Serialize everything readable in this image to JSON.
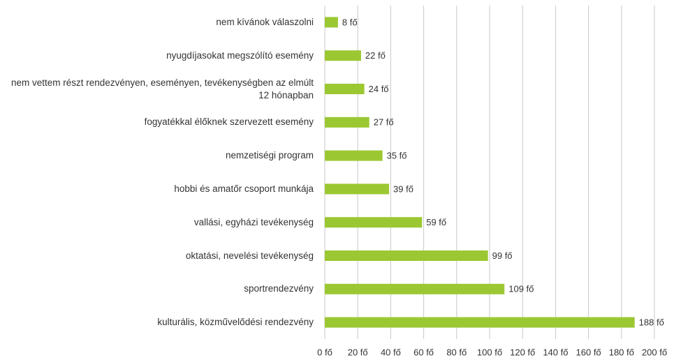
{
  "chart_data": {
    "type": "barh",
    "categories": [
      "nem kívánok válaszolni",
      "nyugdíjasokat megszólító esemény",
      "nem vettem részt rendezvényen, eseményen, tevékenységben az elmúlt 12 hónapban",
      "fogyatékkal élőknek szervezett esemény",
      "nemzetiségi program",
      "hobbi és amatőr csoport munkája",
      "vallási, egyházi tevékenység",
      "oktatási, nevelési tevékenység",
      "sportrendezvény",
      "kulturális, közművelődési rendezvény"
    ],
    "values": [
      8,
      22,
      24,
      27,
      35,
      39,
      59,
      99,
      109,
      188
    ],
    "value_labels": [
      "8 fő",
      "22 fő",
      "24 fő",
      "27 fő",
      "35 fő",
      "39 fő",
      "59 fő",
      "99 fő",
      "109 fő",
      "188 fő"
    ],
    "color": "#9bc832",
    "xlim": [
      0,
      200
    ],
    "xticks": [
      {
        "value": 0,
        "label": "0 fő"
      },
      {
        "value": 20,
        "label": "20 fő"
      },
      {
        "value": 40,
        "label": "40 fő"
      },
      {
        "value": 60,
        "label": "60 fő"
      },
      {
        "value": 80,
        "label": "80 fő"
      },
      {
        "value": 100,
        "label": "100 fő"
      },
      {
        "value": 120,
        "label": "120 fő"
      },
      {
        "value": 140,
        "label": "140 fő"
      },
      {
        "value": 160,
        "label": "160 fő"
      },
      {
        "value": 180,
        "label": "180 fő"
      },
      {
        "value": 200,
        "label": "200 fő"
      }
    ],
    "grid": true
  }
}
